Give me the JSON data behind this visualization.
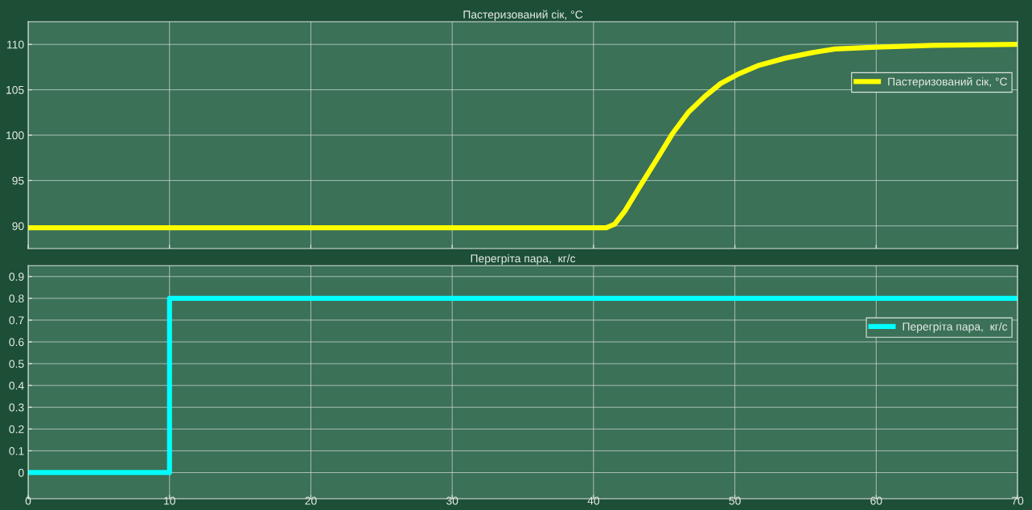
{
  "chart_data": [
    {
      "type": "line",
      "title": "Пастеризований сік, °C",
      "tick_labels": "y",
      "grid": true,
      "legend": "top right",
      "xlim": [
        0,
        70
      ],
      "xticks": [
        0,
        10,
        20,
        30,
        40,
        50,
        60,
        70
      ],
      "ylim": [
        87.5,
        112.5
      ],
      "yticks": [
        90,
        95,
        100,
        105,
        110
      ],
      "series": [
        {
          "name": "Пастеризований сік, °C",
          "color": "#ffff00",
          "x": [
            0,
            40.9,
            41.5,
            42.2,
            43.3,
            44.5,
            45.6,
            46.7,
            47.9,
            49.0,
            50.2,
            51.7,
            53.6,
            55.5,
            57.1,
            60.0,
            64.0,
            70
          ],
          "values": [
            89.8,
            89.8,
            90.2,
            91.6,
            94.4,
            97.4,
            100.2,
            102.5,
            104.3,
            105.7,
            106.7,
            107.7,
            108.5,
            109.1,
            109.5,
            109.7,
            109.9,
            110
          ]
        }
      ]
    },
    {
      "type": "step",
      "title": "Перегріта пара,  кг/с",
      "grid": true,
      "legend": "top right",
      "xlim": [
        0,
        70
      ],
      "xticks": [
        0,
        10,
        20,
        30,
        40,
        50,
        60,
        70
      ],
      "ylim": [
        -0.12,
        0.95
      ],
      "yticks": [
        0,
        0.1,
        0.2,
        0.3,
        0.4,
        0.5,
        0.6,
        0.7,
        0.8,
        0.9
      ],
      "series": [
        {
          "name": "Перегріта пара,  кг/с",
          "color": "#00ffff",
          "x": [
            0,
            10,
            70
          ],
          "values": [
            0,
            0.8,
            0.8
          ]
        }
      ]
    }
  ]
}
